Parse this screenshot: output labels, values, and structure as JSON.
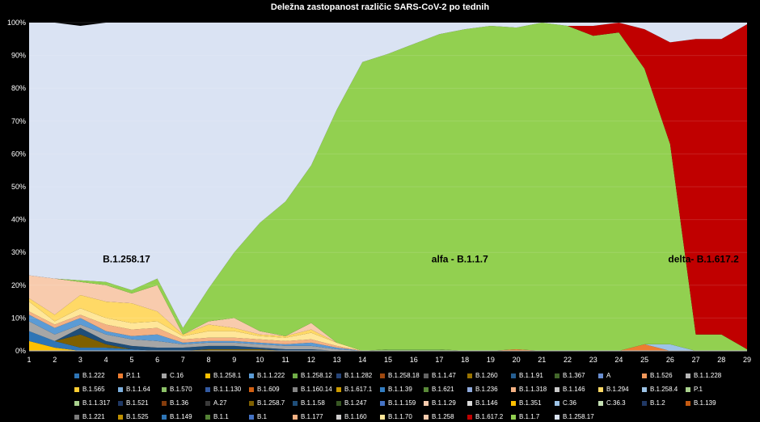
{
  "chart_data": {
    "type": "area",
    "stacked": true,
    "percent": true,
    "title": "Deležna zastopanost različic SARS-CoV-2 po tednih",
    "xlabel": "",
    "ylabel": "",
    "ylim": [
      0,
      100
    ],
    "x": [
      1,
      2,
      3,
      4,
      5,
      6,
      7,
      8,
      9,
      10,
      11,
      12,
      13,
      14,
      15,
      16,
      17,
      18,
      19,
      20,
      21,
      22,
      23,
      24,
      25,
      26,
      27,
      28,
      29
    ],
    "y_ticks": [
      "0%",
      "10%",
      "20%",
      "30%",
      "40%",
      "50%",
      "60%",
      "70%",
      "80%",
      "90%",
      "100%"
    ],
    "grid": true,
    "legend_position": "bottom",
    "series": [
      {
        "name": "B.1.351",
        "color": "#ffc000",
        "values": [
          3,
          1,
          0,
          0,
          0,
          0,
          0,
          0,
          0,
          0,
          0,
          0,
          0,
          0,
          0,
          0,
          0,
          0,
          0,
          0,
          0,
          0,
          0,
          0,
          0,
          0,
          0,
          0,
          0
        ]
      },
      {
        "name": "B.1.258.18",
        "color": "#2e75b6",
        "values": [
          3,
          2,
          1,
          1,
          0.5,
          0,
          0,
          0,
          0,
          0,
          0,
          0,
          0,
          0,
          0,
          0,
          0,
          0,
          0,
          0,
          0,
          0,
          0,
          0,
          0,
          0,
          0,
          0,
          0
        ]
      },
      {
        "name": "B.1.221",
        "color": "#7f6000",
        "values": [
          0,
          0,
          4,
          1,
          0,
          0,
          0,
          0.5,
          0.5,
          0.5,
          0,
          0,
          0,
          0,
          0,
          0,
          0,
          0,
          0,
          0,
          0,
          0,
          0,
          0,
          0,
          0,
          0,
          0,
          0
        ]
      },
      {
        "name": "B.1.160",
        "color": "#1f4e79",
        "values": [
          0,
          0,
          2,
          1,
          1,
          1,
          1,
          1,
          1,
          0.5,
          0.5,
          0.5,
          0,
          0,
          0,
          0,
          0,
          0,
          0,
          0,
          0,
          0,
          0,
          0,
          0,
          0,
          0,
          0,
          0
        ]
      },
      {
        "name": "B.1.160.14",
        "color": "#a6a6a6",
        "values": [
          3,
          2,
          1,
          2,
          2,
          2,
          1,
          1,
          1,
          1,
          1,
          1,
          0.5,
          0,
          0,
          0,
          0,
          0,
          0,
          0,
          0,
          0,
          0,
          0,
          0,
          0,
          0,
          0,
          0
        ]
      },
      {
        "name": "B.1.258.7",
        "color": "#5b9bd5",
        "values": [
          2,
          2,
          2,
          1,
          1,
          2,
          0.5,
          0.5,
          0.5,
          0.5,
          0.5,
          1,
          0.5,
          0,
          0,
          0,
          0,
          0,
          0,
          0,
          0,
          0,
          0,
          0,
          0,
          0,
          0,
          0,
          0
        ]
      },
      {
        "name": "B.1.1.318",
        "color": "#f4b183",
        "values": [
          1,
          1,
          1,
          2,
          2,
          2,
          1,
          1,
          1,
          1,
          1,
          1,
          0.5,
          0,
          0,
          0,
          0,
          0,
          0,
          0,
          0,
          0,
          0,
          0,
          0,
          0,
          0,
          0,
          0
        ]
      },
      {
        "name": "B.1.1.70",
        "color": "#ffe699",
        "values": [
          3,
          1,
          2,
          2,
          2,
          2,
          1,
          2,
          2,
          1,
          1,
          2,
          1,
          0,
          0,
          0,
          0,
          0,
          0,
          0,
          0,
          0,
          0,
          0,
          0,
          0,
          0,
          0,
          0
        ]
      },
      {
        "name": "B.1.1.29",
        "color": "#ffd966",
        "values": [
          1,
          2,
          4,
          5,
          6,
          3,
          0.5,
          2,
          1,
          0.5,
          0.5,
          1,
          0,
          0,
          0,
          0,
          0,
          0,
          0,
          0,
          0,
          0,
          0,
          0,
          0,
          0,
          0,
          0,
          0
        ]
      },
      {
        "name": "B.1.258",
        "color": "#f8cbad",
        "values": [
          7,
          11,
          4,
          5,
          3,
          8,
          0,
          1,
          3,
          1,
          0,
          2,
          0,
          0,
          0,
          0,
          0,
          0,
          0,
          0,
          0,
          0,
          0,
          0,
          0,
          0,
          0,
          0,
          0
        ]
      },
      {
        "name": "B.1.39",
        "color": "#70ad47",
        "values": [
          0,
          0,
          0,
          0,
          0,
          0,
          0,
          0,
          0,
          0,
          0,
          0,
          0,
          0,
          0.5,
          0.5,
          0.5,
          0,
          0,
          0,
          0,
          0,
          0,
          0,
          0,
          0,
          0,
          0,
          0
        ]
      },
      {
        "name": "B.1.1.318",
        "color": "#ed7d31",
        "values": [
          0,
          0,
          0,
          0,
          0,
          0,
          0,
          0,
          0,
          0,
          0,
          0,
          0,
          0,
          0,
          0,
          0,
          0,
          0,
          0.5,
          0,
          0,
          0,
          0,
          2,
          0,
          0,
          0,
          0
        ]
      },
      {
        "name": "B.1.617.1",
        "color": "#9dc3e6",
        "values": [
          0,
          0,
          0,
          0,
          0,
          0,
          0,
          0,
          0,
          0,
          0,
          0,
          0,
          0,
          0,
          0,
          0,
          0,
          0,
          0,
          0,
          0,
          0,
          0,
          0,
          2,
          0,
          0,
          0
        ]
      },
      {
        "name": "B.1.1.7",
        "color": "#92d050",
        "values": [
          0,
          0,
          0.5,
          1,
          1,
          2,
          2,
          10,
          20,
          33,
          41,
          48,
          71,
          88,
          90,
          93,
          96,
          98,
          99,
          98,
          100,
          99,
          96,
          97,
          84,
          61,
          5,
          5,
          0.5
        ]
      },
      {
        "name": "B.1.617.2",
        "color": "#c00000",
        "values": [
          0,
          0,
          0,
          0,
          0,
          0,
          0,
          0,
          0,
          0,
          0,
          0,
          0,
          0,
          0,
          0,
          0,
          0,
          0,
          0,
          0,
          0,
          3,
          3,
          12,
          31,
          90,
          90,
          99
        ]
      },
      {
        "name": "B.1.258.17",
        "color": "#dae3f3",
        "values": [
          77,
          78,
          77.5,
          81,
          83.5,
          80,
          93,
          82,
          71,
          61,
          55,
          44,
          27,
          12,
          9.5,
          6.5,
          3.5,
          2,
          1,
          1.5,
          0,
          1,
          1,
          0,
          2,
          6,
          5,
          5,
          0.5
        ]
      }
    ],
    "annotations": [
      {
        "text": "B.1.258.17",
        "x": 4.8,
        "y": 27
      },
      {
        "text": "alfa - B.1.1.7",
        "x": 17.8,
        "y": 27
      },
      {
        "text": "delta- B.1.617.2",
        "x": 27.3,
        "y": 27
      }
    ],
    "legend": [
      {
        "name": "B.1.222",
        "color": "#2e75b6"
      },
      {
        "name": "P.1.1",
        "color": "#ed7d31"
      },
      {
        "name": "C.16",
        "color": "#a5a5a5"
      },
      {
        "name": "B.1.258.1",
        "color": "#ffc000"
      },
      {
        "name": "B.1.1.222",
        "color": "#5b9bd5"
      },
      {
        "name": "B.1.258.12",
        "color": "#70ad47"
      },
      {
        "name": "B.1.1.282",
        "color": "#264478"
      },
      {
        "name": "B.1.258.18",
        "color": "#9e480e"
      },
      {
        "name": "B.1.1.47",
        "color": "#636363"
      },
      {
        "name": "B.1.260",
        "color": "#997300"
      },
      {
        "name": "B.1.1.91",
        "color": "#255e91"
      },
      {
        "name": "B.1.367",
        "color": "#43682b"
      },
      {
        "name": "A",
        "color": "#698ed0"
      },
      {
        "name": "B.1.526",
        "color": "#f1975a"
      },
      {
        "name": "B.1.1.228",
        "color": "#b7b7b7"
      },
      {
        "name": "B.1.565",
        "color": "#ffcd33"
      },
      {
        "name": "B.1.1.64",
        "color": "#7cafdd"
      },
      {
        "name": "B.1.570",
        "color": "#8cc168"
      },
      {
        "name": "B.1.1.130",
        "color": "#335aa1"
      },
      {
        "name": "B.1.609",
        "color": "#d26012"
      },
      {
        "name": "B.1.160.14",
        "color": "#848484"
      },
      {
        "name": "B.1.617.1",
        "color": "#cc9a00"
      },
      {
        "name": "B.1.1.39",
        "color": "#327dc2"
      },
      {
        "name": "B.1.621",
        "color": "#5a8a39"
      },
      {
        "name": "B.1.236",
        "color": "#8faadc"
      },
      {
        "name": "B.1.1.318",
        "color": "#f4b183"
      },
      {
        "name": "B.1.146",
        "color": "#c9c9c9"
      },
      {
        "name": "B.1.294",
        "color": "#ffd966"
      },
      {
        "name": "B.1.258.4",
        "color": "#9dc3e6"
      },
      {
        "name": "P.1",
        "color": "#a9d18e"
      },
      {
        "name": "B.1.1.317",
        "color": "#a9d18e"
      },
      {
        "name": "B.1.521",
        "color": "#1f3864"
      },
      {
        "name": "B.1.36",
        "color": "#843c0c"
      },
      {
        "name": "A.27",
        "color": "#3a3a3a"
      },
      {
        "name": "B.1.258.7",
        "color": "#7f6000"
      },
      {
        "name": "B.1.1.58",
        "color": "#1f4e79"
      },
      {
        "name": "B.1.247",
        "color": "#385723"
      },
      {
        "name": "B.1.1.159",
        "color": "#4472c4"
      },
      {
        "name": "B.1.1.29",
        "color": "#f8cbad"
      },
      {
        "name": "B.1.146",
        "color": "#d9d9d9"
      },
      {
        "name": "B.1.351",
        "color": "#ffc000"
      },
      {
        "name": "C.36",
        "color": "#9dc3e6"
      },
      {
        "name": "C.36.3",
        "color": "#c5e0b4"
      },
      {
        "name": "B.1.2",
        "color": "#203864"
      },
      {
        "name": "B.1.139",
        "color": "#c55a11"
      },
      {
        "name": "B.1.221",
        "color": "#7b7b7b"
      },
      {
        "name": "B.1.525",
        "color": "#bf9000"
      },
      {
        "name": "B.1.149",
        "color": "#2e75b6"
      },
      {
        "name": "B.1.1",
        "color": "#548235"
      },
      {
        "name": "B.1",
        "color": "#4472c4"
      },
      {
        "name": "B.1.177",
        "color": "#f4b183"
      },
      {
        "name": "B.1.160",
        "color": "#d0cece"
      },
      {
        "name": "B.1.1.70",
        "color": "#ffe699"
      },
      {
        "name": "B.1.258",
        "color": "#f8cbad"
      },
      {
        "name": "B.1.617.2",
        "color": "#c00000"
      },
      {
        "name": "B.1.1.7",
        "color": "#92d050"
      },
      {
        "name": "B.1.258.17",
        "color": "#dae3f3"
      }
    ]
  }
}
